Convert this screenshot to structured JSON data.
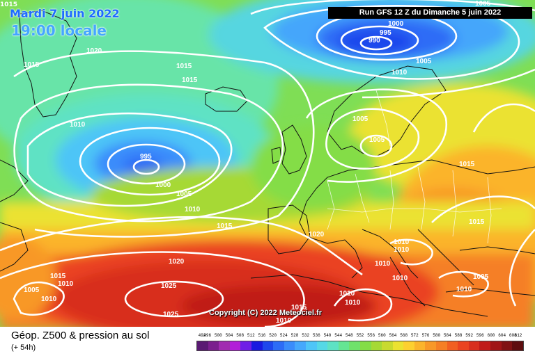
{
  "header": {
    "date": "Mardi 7 juin 2022",
    "local_time": "19:00 locale",
    "corner_value": "1015",
    "run_info": "Run GFS 12 Z du Dimanche 5 juin 2022"
  },
  "map": {
    "copyright": "Copyright (C) 2022 Meteociel.fr",
    "isobar_labels": [
      "1020",
      "1015",
      "1015",
      "1015",
      "1010",
      "1005",
      "1000",
      "995",
      "990",
      "1005",
      "1010",
      "1015",
      "1005",
      "1005",
      "995",
      "1000",
      "1005",
      "1010",
      "1015",
      "1020",
      "1020",
      "1015",
      "1010",
      "1005",
      "1010",
      "1025",
      "1025",
      "1015",
      "1010",
      "1010",
      "1010",
      "1010",
      "1010",
      "1010",
      "1015",
      "1010",
      "1005",
      "1010"
    ],
    "gph_colors": [
      "#5a1a73",
      "#7b1f8e",
      "#a12bb0",
      "#b21fd8",
      "#6f1fe6",
      "#1a1ae0",
      "#1f47ec",
      "#2d6cf6",
      "#3a8cfb",
      "#45a8fc",
      "#4ec5f7",
      "#55d8e6",
      "#5ee2c4",
      "#65e593",
      "#6fe26b",
      "#84dd46",
      "#a6d934",
      "#c8da2f",
      "#ebe231",
      "#fdd030",
      "#fbb42c",
      "#f89828",
      "#f57f25",
      "#f15f22",
      "#ea4320",
      "#d82f1e",
      "#c01b19",
      "#a01516",
      "#801213",
      "#5e0d0f"
    ]
  },
  "footer": {
    "field_title": "Géop. Z500 & pression au sol",
    "lead_time": "(+ 54h)",
    "scale_values": [
      "492",
      "496",
      "500",
      "504",
      "508",
      "512",
      "516",
      "520",
      "524",
      "528",
      "532",
      "536",
      "540",
      "544",
      "548",
      "552",
      "556",
      "560",
      "564",
      "568",
      "572",
      "576",
      "580",
      "584",
      "588",
      "592",
      "596",
      "600",
      "604",
      "608",
      "612"
    ]
  }
}
